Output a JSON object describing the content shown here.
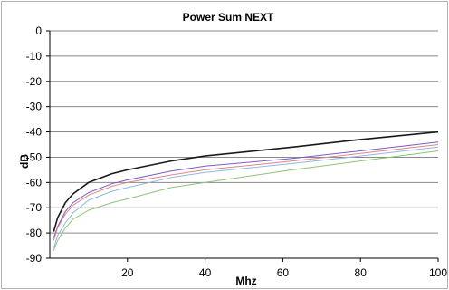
{
  "chart_data": {
    "type": "line",
    "title": "Power Sum NEXT",
    "xlabel": "Mhz",
    "ylabel": "dB",
    "xlim": [
      0,
      100
    ],
    "ylim": [
      -90,
      0
    ],
    "xticks": [
      20,
      40,
      60,
      80,
      100
    ],
    "yticks": [
      0,
      -10,
      -20,
      -30,
      -40,
      -50,
      -60,
      -70,
      -80,
      -90
    ],
    "grid": "horizontal",
    "legend": "none",
    "series": [
      {
        "color": "#1a1a1a",
        "x": [
          1,
          2,
          4,
          6,
          10,
          16,
          20,
          31.25,
          40,
          62.5,
          80,
          100
        ],
        "y": [
          -79.5,
          -74,
          -68,
          -64.5,
          -60,
          -56.5,
          -55,
          -51.5,
          -49.5,
          -46,
          -43,
          -40
        ]
      },
      {
        "color": "#7b5cc8",
        "x": [
          1,
          2,
          4,
          6,
          10,
          16,
          20,
          31.25,
          40,
          62.5,
          80,
          100
        ],
        "y": [
          -82,
          -77.5,
          -71.5,
          -68,
          -64,
          -60.5,
          -59,
          -55.5,
          -53.5,
          -50.5,
          -47.5,
          -44
        ]
      },
      {
        "color": "#e2868a",
        "x": [
          1,
          2,
          4,
          6,
          10,
          16,
          20,
          31.25,
          40,
          62.5,
          80,
          100
        ],
        "y": [
          -83,
          -78,
          -72.5,
          -69,
          -65,
          -61.5,
          -60,
          -57,
          -55,
          -51.5,
          -48.5,
          -45
        ]
      },
      {
        "color": "#8fb8e0",
        "x": [
          1,
          2,
          4,
          6,
          10,
          16,
          20,
          31.25,
          40,
          62.5,
          80,
          100
        ],
        "y": [
          -86,
          -81,
          -76,
          -72,
          -67,
          -63.5,
          -62,
          -58,
          -56,
          -52.5,
          -49.5,
          -46
        ]
      },
      {
        "color": "#8dc478",
        "x": [
          1,
          2,
          4,
          6,
          10,
          16,
          20,
          31.25,
          40,
          62.5,
          80,
          100
        ],
        "y": [
          -87,
          -83,
          -78,
          -74.5,
          -71,
          -68,
          -66.5,
          -62,
          -60,
          -55,
          -51.5,
          -47.5
        ]
      }
    ]
  }
}
